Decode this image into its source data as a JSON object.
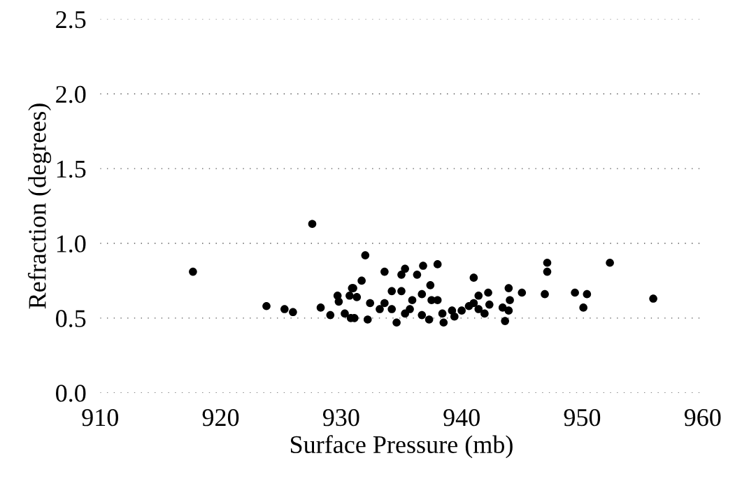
{
  "chart_data": {
    "type": "scatter",
    "xlabel": "Surface Pressure (mb)",
    "ylabel": "Refraction (degrees)",
    "xlim": [
      910,
      960
    ],
    "xticks": [
      910,
      920,
      930,
      940,
      950,
      960
    ],
    "ylim": [
      0.0,
      2.5
    ],
    "yticks": [
      {
        "value": 0.0,
        "label": "0.0"
      },
      {
        "value": 0.5,
        "label": "0.5"
      },
      {
        "value": 1.0,
        "label": "1.0"
      },
      {
        "value": 1.5,
        "label": "1.5"
      },
      {
        "value": 2.0,
        "label": "2.0"
      },
      {
        "value": 2.5,
        "label": "2.5"
      }
    ],
    "grid": "y",
    "marker": "circle",
    "legend": false,
    "series": [
      {
        "color": "#000000",
        "x": [
          917.7,
          927.6,
          923.8,
          925.3,
          926.0,
          928.3,
          929.1,
          929.7,
          929.8,
          930.9,
          930.7,
          930.3,
          930.8,
          932.0,
          933.6,
          935.3,
          935.0,
          936.3,
          936.8,
          938.0,
          931.7,
          941.0,
          937.4,
          934.2,
          935.0,
          936.7,
          941.4,
          942.2,
          943.9,
          945.0,
          947.1,
          947.1,
          946.9,
          952.3,
          949.4,
          950.4,
          950.1,
          955.9,
          944.0,
          942.3,
          941.9,
          943.4,
          943.9,
          943.6,
          938.0,
          937.5,
          935.9,
          941.0,
          941.4,
          934.6,
          938.5,
          937.3,
          936.7,
          932.2,
          931.1,
          933.2,
          932.4,
          933.6,
          934.2,
          935.3,
          939.2,
          940.0,
          940.6,
          931.0,
          931.3,
          935.7,
          938.4,
          939.4
        ],
        "values": [
          0.81,
          1.13,
          0.58,
          0.56,
          0.54,
          0.57,
          0.52,
          0.65,
          0.61,
          0.7,
          0.65,
          0.53,
          0.5,
          0.92,
          0.81,
          0.83,
          0.79,
          0.79,
          0.85,
          0.86,
          0.75,
          0.77,
          0.72,
          0.68,
          0.68,
          0.66,
          0.65,
          0.67,
          0.7,
          0.67,
          0.87,
          0.81,
          0.66,
          0.87,
          0.67,
          0.66,
          0.57,
          0.63,
          0.62,
          0.59,
          0.53,
          0.57,
          0.55,
          0.48,
          0.62,
          0.62,
          0.62,
          0.6,
          0.56,
          0.47,
          0.47,
          0.49,
          0.52,
          0.49,
          0.5,
          0.56,
          0.6,
          0.6,
          0.56,
          0.53,
          0.55,
          0.55,
          0.58,
          0.7,
          0.64,
          0.56,
          0.53,
          0.51
        ]
      }
    ]
  }
}
